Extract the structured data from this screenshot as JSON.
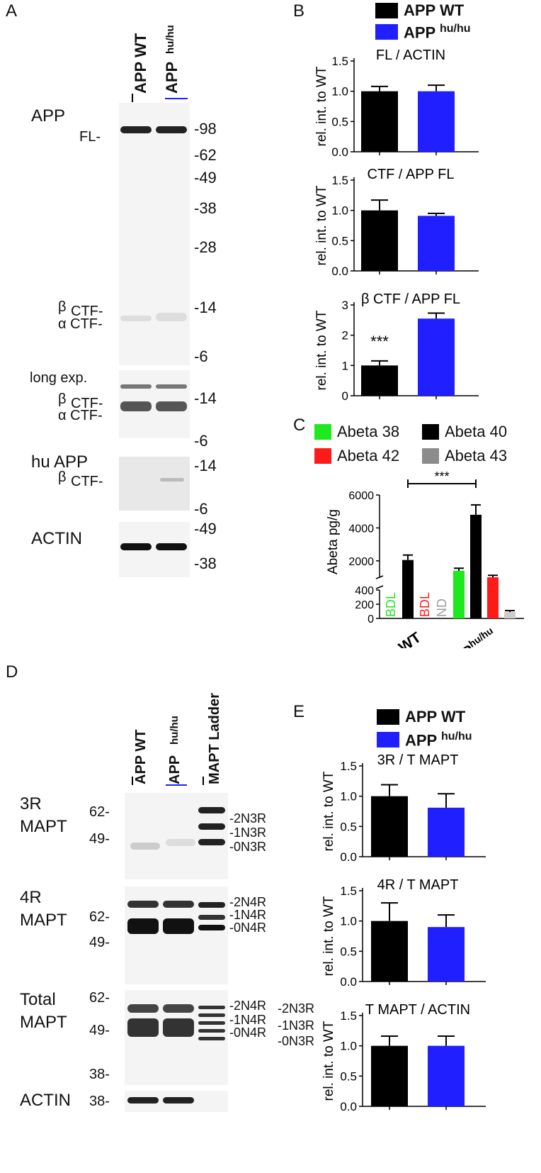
{
  "panels": {
    "A": {
      "letter": "A",
      "lanes": [
        "APP WT",
        "APP",
        "hu/hu"
      ],
      "labels": {
        "app": "APP",
        "fl": "FL-",
        "beta_ctf_1": "β",
        "ctf_1": "CTF-",
        "alpha_ctf_1": "α CTF-",
        "long_exp": "long exp.",
        "beta_ctf_2": "β",
        "ctf_2": "CTF-",
        "alpha_ctf_2": "α CTF-",
        "hu_app": "hu APP",
        "beta_ctf_3": "β",
        "ctf_3": "CTF-",
        "actin": "ACTIN"
      },
      "markers": [
        "-98",
        "-62",
        "-49",
        "-38",
        "-28",
        "-14",
        "-6",
        "-14",
        "-6",
        "-14",
        "-6",
        "-49",
        "-38"
      ]
    },
    "B": {
      "letter": "B",
      "legend": [
        {
          "label": "APP WT",
          "sup": "",
          "color": "#000000"
        },
        {
          "label": "APP",
          "sup": "hu/hu",
          "color": "#1f1fff"
        }
      ]
    },
    "C": {
      "letter": "C",
      "legend": [
        {
          "label": "Abeta 38",
          "color": "#1ee81e"
        },
        {
          "label": "Abeta 40",
          "color": "#000000"
        },
        {
          "label": "Abeta 42",
          "color": "#ff1a1a"
        },
        {
          "label": "Abeta 43",
          "color": "#8c8c8c"
        }
      ],
      "annotations": {
        "bdl_green": "BDL",
        "bdl_red": "BDL",
        "nd": "ND",
        "sig": "***"
      }
    },
    "D": {
      "letter": "D",
      "lanes": [
        "APP WT",
        "APP",
        "hu/hu",
        "MAPT Ladder"
      ],
      "labels": {
        "r3": "3R",
        "mapt1": "MAPT",
        "r4": "4R",
        "mapt2": "MAPT",
        "total": "Total",
        "mapt3": "MAPT",
        "actin": "ACTIN"
      },
      "markers_left": [
        "62-",
        "49-",
        "62-",
        "49-",
        "62-",
        "49-",
        "38-",
        "38-"
      ],
      "isoforms": [
        "-2N3R",
        "-1N3R",
        "-0N3R",
        "-2N4R",
        "-1N4R",
        "-0N4R",
        "-2N4R",
        "-1N4R",
        "-0N4R",
        "-2N3R",
        "-1N3R",
        "-0N3R"
      ]
    },
    "E": {
      "letter": "E",
      "legend": [
        {
          "label": "APP WT",
          "sup": "",
          "color": "#000000"
        },
        {
          "label": "APP",
          "sup": "hu/hu",
          "color": "#1f1fff"
        }
      ]
    }
  },
  "chart_data": [
    {
      "type": "bar",
      "title": "FL / ACTIN",
      "ylabel": "rel. int. to WT",
      "categories": [
        "APP WT",
        "APP hu/hu"
      ],
      "values": [
        1.0,
        1.0
      ],
      "errors": [
        0.08,
        0.1
      ],
      "ylim": [
        0,
        1.5
      ],
      "yticks": [
        "0.0",
        "0.5",
        "1.0",
        "1.5"
      ],
      "significance": ""
    },
    {
      "type": "bar",
      "title": "CTF / APP FL",
      "ylabel": "rel. int. to WT",
      "categories": [
        "APP WT",
        "APP hu/hu"
      ],
      "values": [
        1.0,
        0.91
      ],
      "errors": [
        0.17,
        0.04
      ],
      "ylim": [
        0,
        1.5
      ],
      "yticks": [
        "0.0",
        "0.5",
        "1.0",
        "1.5"
      ],
      "significance": ""
    },
    {
      "type": "bar",
      "title": "CTF / APP FL",
      "title_prefix": "β",
      "ylabel": "rel. int. to WT",
      "categories": [
        "APP WT",
        "APP hu/hu"
      ],
      "values": [
        1.0,
        2.55
      ],
      "errors": [
        0.15,
        0.18
      ],
      "ylim": [
        0,
        3
      ],
      "yticks": [
        "0",
        "1",
        "2",
        "3"
      ],
      "significance": "***"
    },
    {
      "type": "bar",
      "title": "",
      "ylabel": "Abeta pg/g",
      "categories": [
        "APP WT",
        "APP hu/hu"
      ],
      "series": [
        {
          "name": "Abeta 38",
          "values": [
            null,
            1400
          ],
          "errors": [
            null,
            150
          ]
        },
        {
          "name": "Abeta 40",
          "values": [
            2050,
            4800
          ],
          "errors": [
            300,
            600
          ]
        },
        {
          "name": "Abeta 42",
          "values": [
            null,
            1000
          ],
          "errors": [
            null,
            120
          ]
        },
        {
          "name": "Abeta 43",
          "values": [
            null,
            90
          ],
          "errors": [
            null,
            20
          ]
        }
      ],
      "yticks": [
        "0",
        "200",
        "400",
        "2000",
        "4000",
        "6000"
      ],
      "xticklabels": [
        "APP WT",
        "APP",
        "hu/hu"
      ],
      "significance": "***"
    },
    {
      "type": "bar",
      "title": "3R / T MAPT",
      "ylabel": "rel. int. to WT",
      "categories": [
        "APP WT",
        "APP hu/hu"
      ],
      "values": [
        1.0,
        0.81
      ],
      "errors": [
        0.19,
        0.23
      ],
      "ylim": [
        0,
        1.5
      ],
      "yticks": [
        "0.0",
        "0.5",
        "1.0",
        "1.5"
      ],
      "significance": ""
    },
    {
      "type": "bar",
      "title": "4R / T MAPT",
      "ylabel": "rel. int. to WT",
      "categories": [
        "APP WT",
        "APP hu/hu"
      ],
      "values": [
        1.0,
        0.9
      ],
      "errors": [
        0.3,
        0.2
      ],
      "ylim": [
        0,
        1.5
      ],
      "yticks": [
        "0.0",
        "0.5",
        "1.0",
        "1.5"
      ],
      "significance": ""
    },
    {
      "type": "bar",
      "title": "T MAPT / ACTIN",
      "ylabel": "rel. int. to WT",
      "categories": [
        "APP WT",
        "APP hu/hu"
      ],
      "values": [
        1.0,
        1.0
      ],
      "errors": [
        0.16,
        0.16
      ],
      "ylim": [
        0,
        1.5
      ],
      "yticks": [
        "0.0",
        "0.5",
        "1.0",
        "1.5"
      ],
      "significance": ""
    }
  ]
}
